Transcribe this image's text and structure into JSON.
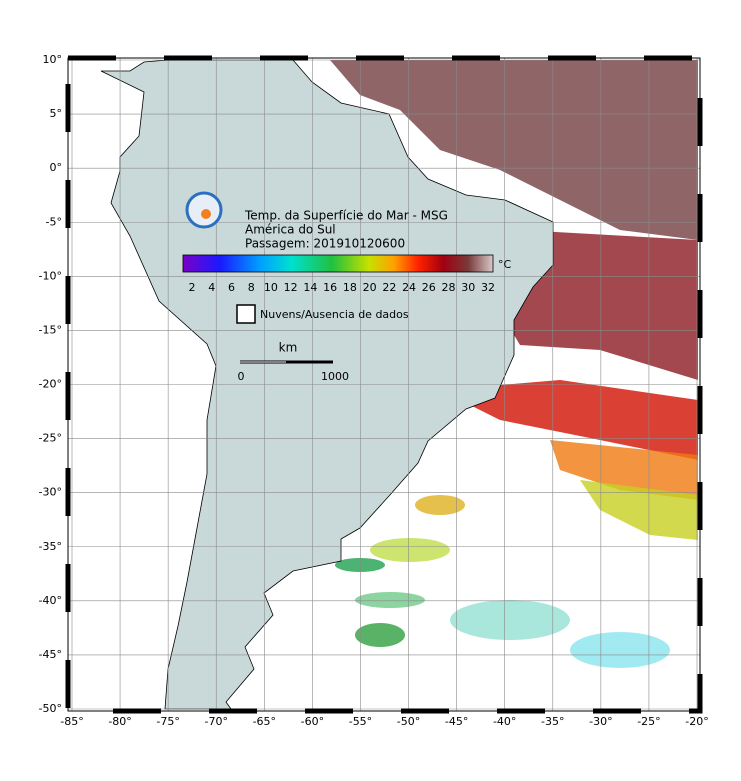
{
  "title": {
    "line1": "Temp. da Superfície do Mar - MSG",
    "line2": "América do Sul",
    "line3": "Passagem: 201910120600"
  },
  "colorbar": {
    "unit": "°C",
    "ticks": [
      2,
      4,
      6,
      8,
      10,
      12,
      14,
      16,
      18,
      20,
      22,
      24,
      26,
      28,
      30,
      32
    ]
  },
  "legend": "Nuvens/Ausencia de dados",
  "scale": {
    "unit": "km",
    "start": 0,
    "end": 1000
  },
  "axes": {
    "lat_labels": [
      "10°",
      "5°",
      "0°",
      "-5°",
      "-10°",
      "-15°",
      "-20°",
      "-25°",
      "-30°",
      "-35°",
      "-40°",
      "-45°",
      "-50°"
    ],
    "lon_labels": [
      "-85°",
      "-80°",
      "-75°",
      "-70°",
      "-65°",
      "-60°",
      "-55°",
      "-50°",
      "-45°",
      "-40°",
      "-35°",
      "-30°",
      "-25°",
      "-20°"
    ]
  }
}
